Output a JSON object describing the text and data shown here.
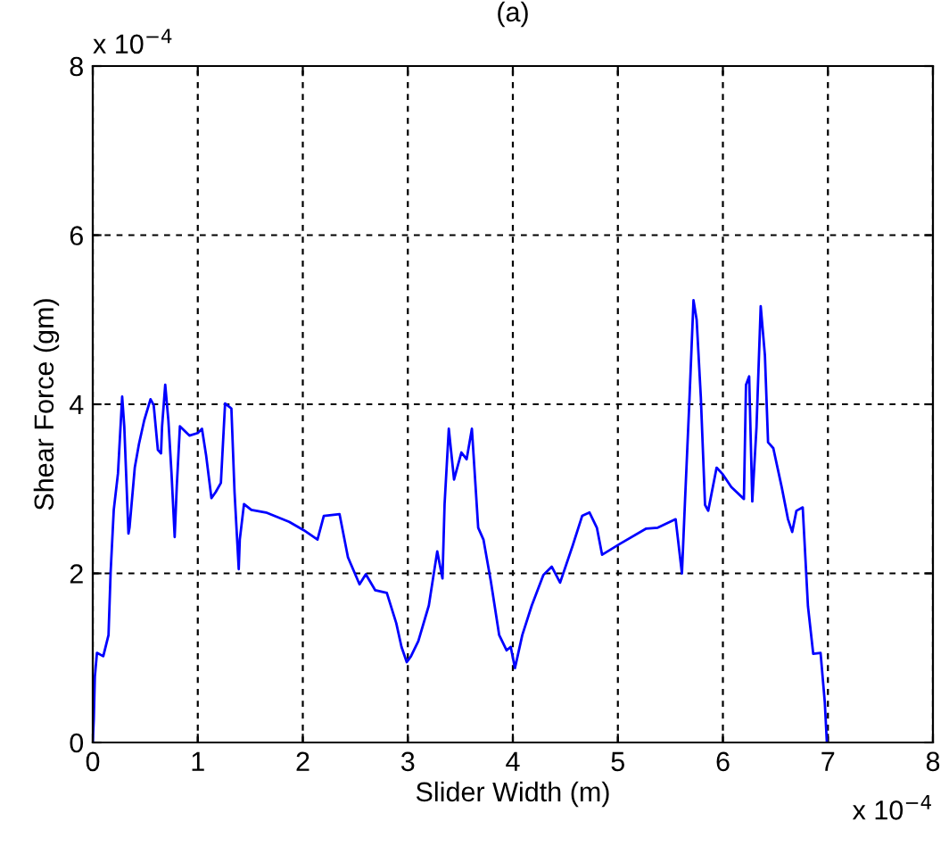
{
  "chart_data": {
    "type": "line",
    "title": "(a)",
    "xlabel": "Slider Width (m)",
    "ylabel": "Shear Force (gm)",
    "annotations": [
      "x 10$^{−4}$",
      "x 10$^{−4}$"
    ],
    "xlim": [
      0,
      8
    ],
    "ylim": [
      0,
      8
    ],
    "xticks": [
      0,
      1,
      2,
      3,
      4,
      5,
      6,
      7,
      8
    ],
    "yticks": [
      0,
      2,
      4,
      6,
      8
    ],
    "grid": true,
    "legend": false,
    "line_style": "solid",
    "marker": "none",
    "series": [
      {
        "color": "#0000ff",
        "x": [
          0,
          0.01,
          0.02,
          0.04,
          0.1,
          0.15,
          0.17,
          0.2,
          0.24,
          0.28,
          0.3,
          0.34,
          0.35,
          0.4,
          0.44,
          0.49,
          0.55,
          0.58,
          0.62,
          0.65,
          0.66,
          0.69,
          0.72,
          0.75,
          0.78,
          0.8,
          0.83,
          0.92,
          1.0,
          1.04,
          1.08,
          1.13,
          1.17,
          1.22,
          1.26,
          1.32,
          1.35,
          1.39,
          1.4,
          1.44,
          1.51,
          1.65,
          1.87,
          2.01,
          2.14,
          2.2,
          2.35,
          2.43,
          2.54,
          2.6,
          2.69,
          2.8,
          2.89,
          2.94,
          2.99,
          3.03,
          3.1,
          3.2,
          3.28,
          3.33,
          3.35,
          3.39,
          3.44,
          3.51,
          3.56,
          3.61,
          3.67,
          3.72,
          3.79,
          3.87,
          3.94,
          3.98,
          4.02,
          4.09,
          4.18,
          4.29,
          4.37,
          4.45,
          4.57,
          4.66,
          4.73,
          4.8,
          4.85,
          5.02,
          5.27,
          5.38,
          5.55,
          5.61,
          5.64,
          5.68,
          5.72,
          5.75,
          5.79,
          5.83,
          5.86,
          5.94,
          6.0,
          6.08,
          6.2,
          6.22,
          6.25,
          6.28,
          6.32,
          6.36,
          6.4,
          6.43,
          6.48,
          6.56,
          6.62,
          6.66,
          6.7,
          6.76,
          6.81,
          6.86,
          6.93,
          6.97,
          6.99
        ],
        "values": [
          0,
          0.28,
          0.78,
          1.06,
          1.02,
          1.27,
          2.01,
          2.75,
          3.18,
          4.09,
          3.74,
          2.47,
          2.54,
          3.25,
          3.53,
          3.81,
          4.06,
          3.99,
          3.46,
          3.42,
          3.74,
          4.23,
          3.81,
          3.18,
          2.43,
          3.03,
          3.74,
          3.63,
          3.66,
          3.71,
          3.39,
          2.89,
          2.96,
          3.07,
          4.01,
          3.95,
          2.96,
          2.05,
          2.4,
          2.82,
          2.75,
          2.72,
          2.61,
          2.51,
          2.4,
          2.68,
          2.7,
          2.19,
          1.87,
          1.99,
          1.8,
          1.77,
          1.41,
          1.13,
          0.95,
          1.02,
          1.2,
          1.62,
          2.26,
          1.94,
          2.82,
          3.71,
          3.11,
          3.43,
          3.35,
          3.71,
          2.54,
          2.4,
          1.91,
          1.27,
          1.09,
          1.13,
          0.88,
          1.27,
          1.62,
          1.98,
          2.08,
          1.89,
          2.33,
          2.68,
          2.72,
          2.54,
          2.22,
          2.35,
          2.53,
          2.54,
          2.64,
          2.0,
          2.88,
          4.01,
          5.23,
          5.0,
          4.08,
          2.81,
          2.74,
          3.25,
          3.17,
          3.02,
          2.88,
          4.23,
          4.33,
          2.85,
          3.73,
          5.16,
          4.58,
          3.55,
          3.48,
          3.02,
          2.64,
          2.49,
          2.74,
          2.78,
          1.61,
          1.05,
          1.06,
          0.48,
          0
        ]
      }
    ]
  }
}
